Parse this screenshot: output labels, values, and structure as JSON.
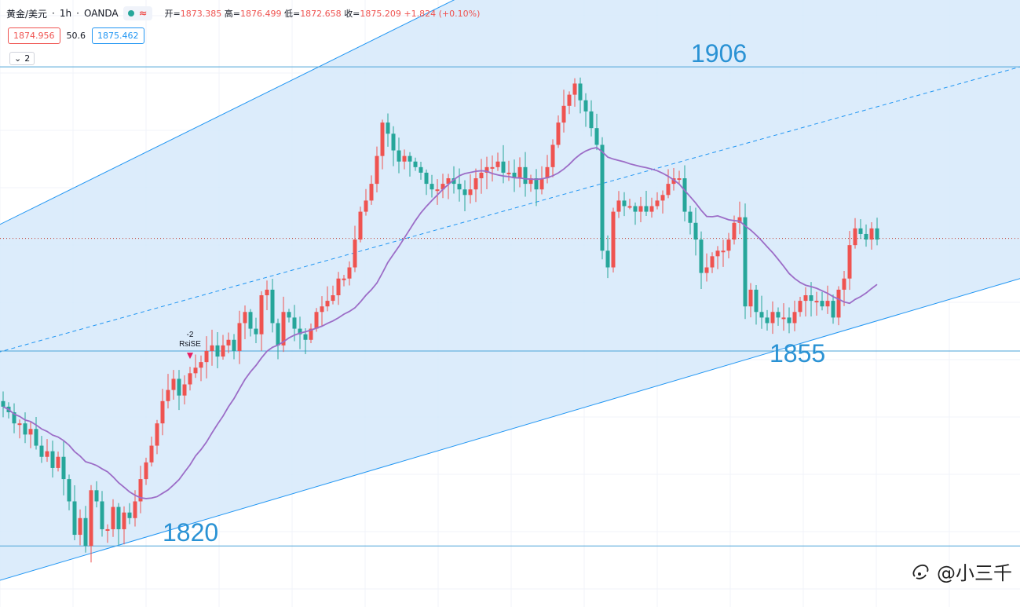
{
  "header": {
    "symbol": "黄金/美元",
    "interval_label": "1h",
    "broker": "OANDA",
    "open_label": "开=",
    "open": "1873.385",
    "high_label": "高=",
    "high": "1876.499",
    "low_label": "低=",
    "low": "1872.658",
    "close_label": "收=",
    "close": "1875.209",
    "change": "+1.824",
    "change_pct": "(+0.10%)"
  },
  "quote": {
    "bid": "1874.956",
    "spread": "50.6",
    "ask": "1875.462"
  },
  "collapse_count": "2",
  "watermark": {
    "text": "@小三千"
  },
  "colors": {
    "up": "#ef5350",
    "down": "#26a69a",
    "ma": "#9c6dc7",
    "channel_fill": "#d6e9fa",
    "channel_line": "#2196f3",
    "level_line": "#4aa3d8",
    "label": "#2a92d4",
    "price_line": "#c0392b"
  },
  "chart_data": {
    "type": "candlestick",
    "y_range": [
      1812,
      1918
    ],
    "bar_count": 160,
    "levels": [
      {
        "name": "level-1906",
        "label": "1906",
        "value": 1906
      },
      {
        "name": "level-1855",
        "label": "1855",
        "value": 1855
      },
      {
        "name": "level-1820",
        "label": "1820",
        "value": 1820
      }
    ],
    "current_price": 1875.2,
    "channel": {
      "upper": [
        [
          0,
          1878
        ],
        [
          82,
          1918
        ]
      ],
      "mid": [
        [
          0,
          1855
        ],
        [
          185,
          1906
        ]
      ],
      "lower": [
        [
          0,
          1814
        ],
        [
          185,
          1868
        ]
      ]
    },
    "annotation": {
      "bar": 34,
      "value": 1853,
      "text_1": "-2",
      "text_2": "RsiSE"
    },
    "closes": [
      1845,
      1844,
      1842,
      1842,
      1840,
      1841,
      1838,
      1836,
      1837,
      1834,
      1836,
      1832,
      1828,
      1822,
      1825,
      1820,
      1830,
      1828,
      1823,
      1823,
      1827,
      1823,
      1826,
      1825,
      1828,
      1832,
      1835,
      1838,
      1842,
      1846,
      1848,
      1850,
      1847,
      1849,
      1851,
      1852,
      1853,
      1855,
      1856,
      1854,
      1856,
      1857,
      1855,
      1860,
      1862,
      1859,
      1858,
      1865,
      1866,
      1860,
      1856,
      1862,
      1861,
      1859,
      1858,
      1857,
      1859,
      1862,
      1863,
      1864,
      1865,
      1868,
      1868,
      1870,
      1875,
      1880,
      1882,
      1885,
      1890,
      1896,
      1894,
      1891,
      1889,
      1890,
      1889,
      1888,
      1887,
      1885,
      1884,
      1884,
      1885,
      1886,
      1885,
      1884,
      1883,
      1884,
      1886,
      1887,
      1888,
      1888,
      1889,
      1887,
      1887,
      1886,
      1888,
      1885,
      1886,
      1884,
      1886,
      1888,
      1892,
      1896,
      1899,
      1901,
      1903,
      1900,
      1898,
      1895,
      1892,
      1873,
      1870,
      1880,
      1882,
      1881,
      1881,
      1880,
      1881,
      1880,
      1881,
      1882,
      1883,
      1885,
      1886,
      1886,
      1880,
      1878,
      1875,
      1869,
      1870,
      1872,
      1873,
      1873,
      1875,
      1878,
      1879,
      1863,
      1866,
      1862,
      1861,
      1860,
      1862,
      1861,
      1861,
      1860,
      1862,
      1864,
      1865,
      1864,
      1864,
      1863,
      1864,
      1861,
      1866,
      1868,
      1874,
      1877,
      1876,
      1875,
      1877,
      1875
    ]
  }
}
